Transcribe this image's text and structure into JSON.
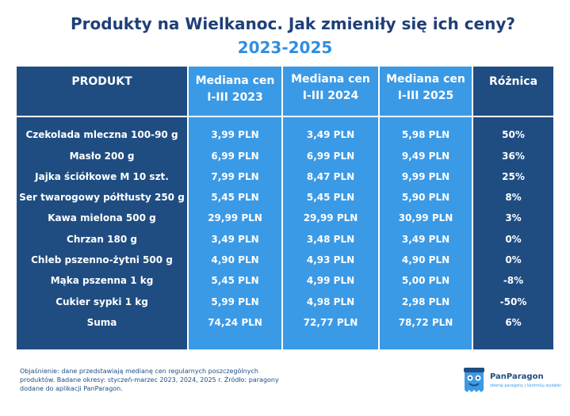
{
  "title": "Produkty na Wielkanoc. Jak zmieniły się ich ceny?",
  "subtitle": "2023-2025",
  "headers": {
    "product": "PRODUKT",
    "y2023_l1": "Mediana cen",
    "y2023_l2": "I-III 2023",
    "y2024_l1": "Mediana cen",
    "y2024_l2": "I-III 2024",
    "y2025_l1": "Mediana cen",
    "y2025_l2": "I-III 2025",
    "diff": "Różnica"
  },
  "rows": [
    {
      "product": "Czekolada mleczna 100-90 g",
      "p2023": "3,99 PLN",
      "p2024": "3,49 PLN",
      "p2025": "5,98 PLN",
      "diff": "50%"
    },
    {
      "product": "Masło 200 g",
      "p2023": "6,99 PLN",
      "p2024": "6,99 PLN",
      "p2025": "9,49 PLN",
      "diff": "36%"
    },
    {
      "product": "Jajka ściółkowe M 10 szt.",
      "p2023": "7,99 PLN",
      "p2024": "8,47 PLN",
      "p2025": "9,99 PLN",
      "diff": "25%"
    },
    {
      "product": "Ser twarogowy półtłusty 250 g",
      "p2023": "5,45 PLN",
      "p2024": "5,45 PLN",
      "p2025": "5,90 PLN",
      "diff": "8%"
    },
    {
      "product": "Kawa mielona 500 g",
      "p2023": "29,99 PLN",
      "p2024": "29,99 PLN",
      "p2025": "30,99 PLN",
      "diff": "3%"
    },
    {
      "product": "Chrzan 180 g",
      "p2023": "3,49 PLN",
      "p2024": "3,48 PLN",
      "p2025": "3,49 PLN",
      "diff": "0%"
    },
    {
      "product": "Chleb pszenno-żytni 500 g",
      "p2023": "4,90 PLN",
      "p2024": "4,93 PLN",
      "p2025": "4,90 PLN",
      "diff": "0%"
    },
    {
      "product": "Mąka pszenna 1 kg",
      "p2023": "5,45 PLN",
      "p2024": "4,99 PLN",
      "p2025": "5,00 PLN",
      "diff": "-8%"
    },
    {
      "product": "Cukier sypki 1 kg",
      "p2023": "5,99 PLN",
      "p2024": "4,98 PLN",
      "p2025": "2,98 PLN",
      "diff": "-50%"
    },
    {
      "product": "Suma",
      "p2023": "74,24 PLN",
      "p2024": "72,77 PLN",
      "p2025": "78,72 PLN",
      "diff": "6%"
    }
  ],
  "footnote": "Objaśnienie: dane przedstawiają medianę cen regularnych poszczególnych produktów. Badane okresy: styczeń-marzec 2023, 2024, 2025 r. Źródło: paragony dodane do aplikacji PanParagon.",
  "logo": {
    "name": "PanParagon",
    "tagline": "zbieraj paragony | kontroluj wydatki"
  },
  "colors": {
    "dark_blue": "#1f4d82",
    "light_blue": "#3b9ae6",
    "title": "#1f3f78",
    "subtitle": "#2f8fe0"
  }
}
